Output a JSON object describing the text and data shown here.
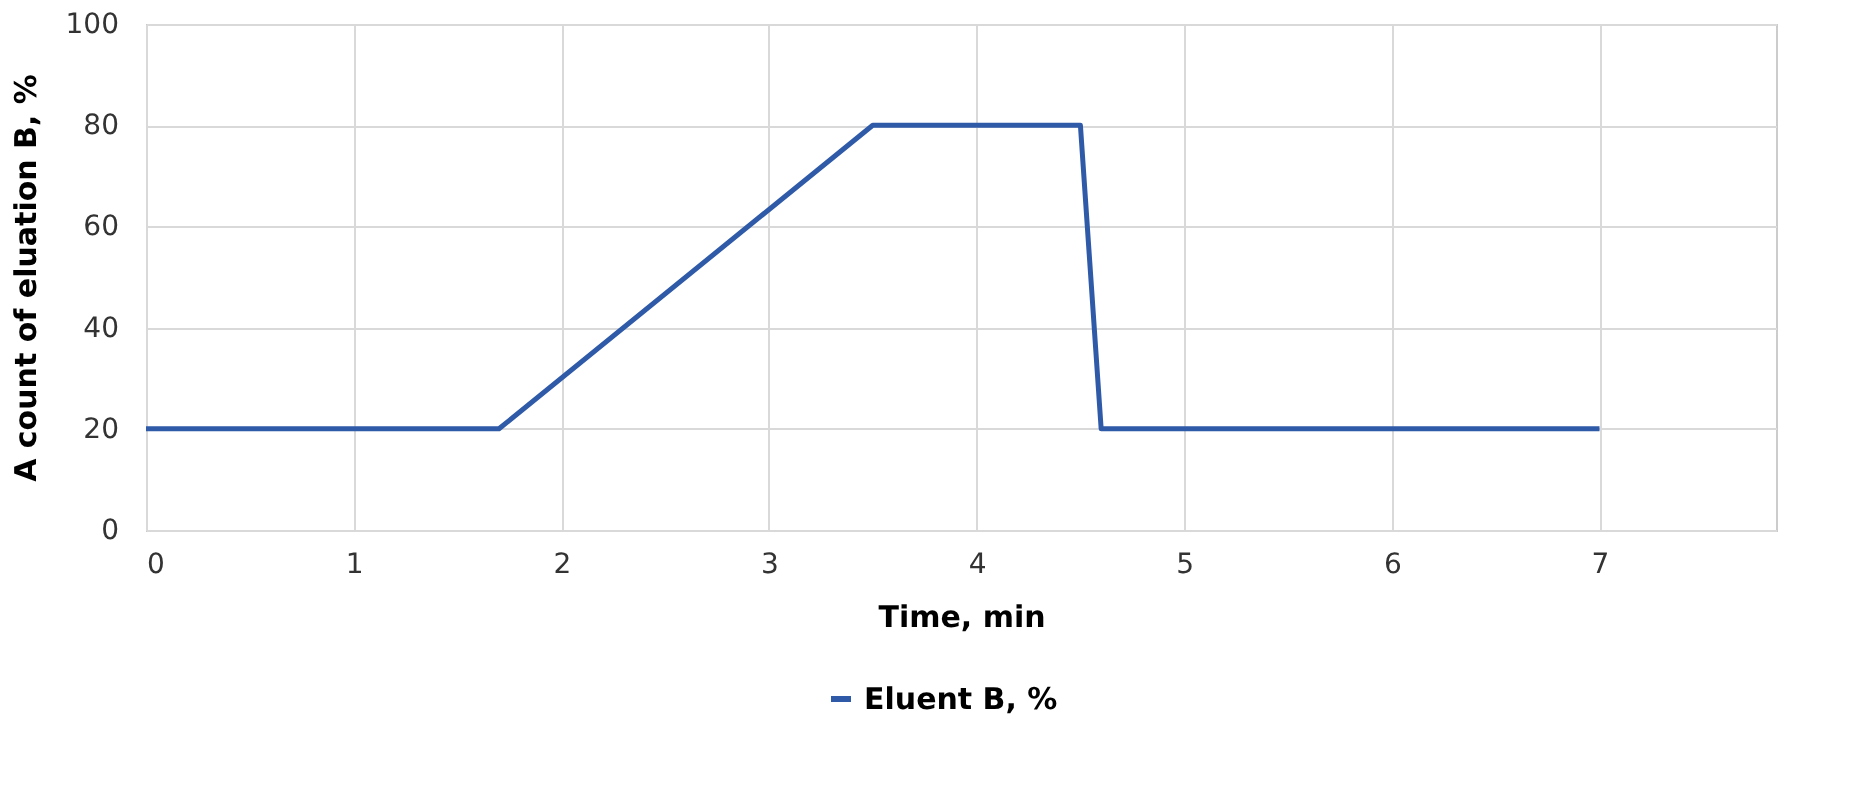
{
  "chart_data": {
    "type": "line",
    "xlabel": "Time, min",
    "ylabel": "A count of eluation B, %",
    "x": [
      0,
      1.7,
      3.5,
      4.5,
      4.6,
      7
    ],
    "series": [
      {
        "name": "Eluent B, %",
        "color": "#2f5aa8",
        "values": [
          20,
          20,
          80,
          80,
          20,
          20
        ]
      }
    ],
    "xlim": [
      0,
      7.85
    ],
    "xticks": [
      0,
      1,
      2,
      3,
      4,
      5,
      6,
      7
    ],
    "ylim": [
      0,
      100
    ],
    "yticks": [
      0,
      20,
      40,
      60,
      80,
      100
    ],
    "grid": true,
    "legend": "bottom",
    "marker": "none",
    "line_style": "solid"
  }
}
